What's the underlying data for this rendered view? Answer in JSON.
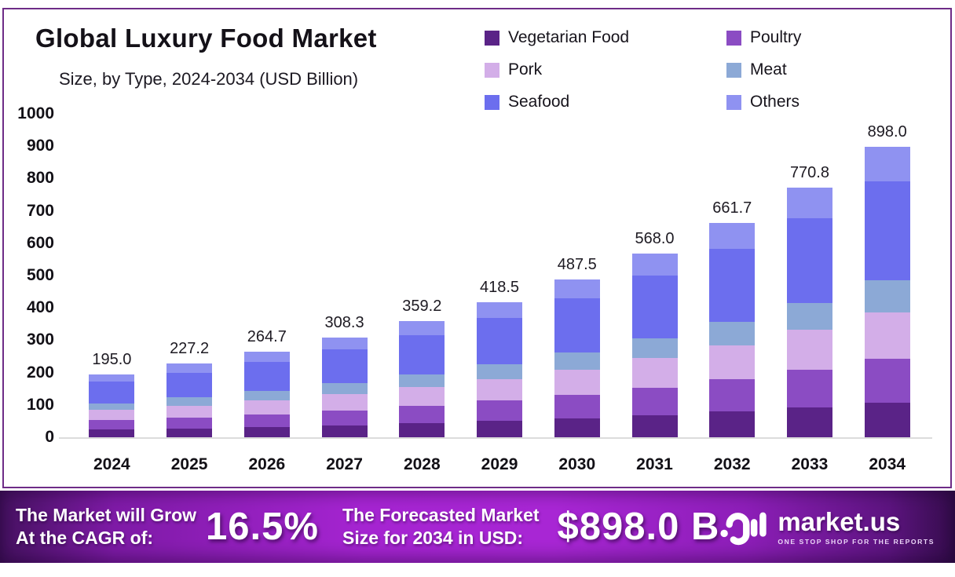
{
  "chart_data": {
    "type": "bar",
    "stacked": true,
    "title": "Global Luxury Food Market",
    "subtitle": "Size, by Type, 2024-2034 (USD Billion)",
    "categories": [
      "2024",
      "2025",
      "2026",
      "2027",
      "2028",
      "2029",
      "2030",
      "2031",
      "2032",
      "2033",
      "2034"
    ],
    "series": [
      {
        "name": "Vegetarian Food",
        "color": "#5a2387",
        "values": [
          23.4,
          27.3,
          31.8,
          37.0,
          43.1,
          50.2,
          58.5,
          68.2,
          79.4,
          92.5,
          107.8
        ]
      },
      {
        "name": "Poultry",
        "color": "#8b4cc3",
        "values": [
          29.3,
          34.1,
          39.7,
          46.2,
          53.9,
          62.8,
          73.1,
          85.2,
          99.3,
          115.6,
          134.7
        ]
      },
      {
        "name": "Pork",
        "color": "#d3aee8",
        "values": [
          31.2,
          36.4,
          42.4,
          49.3,
          57.5,
          67.0,
          78.0,
          90.9,
          105.9,
          123.3,
          143.7
        ]
      },
      {
        "name": "Meat",
        "color": "#8ca9d6",
        "values": [
          21.5,
          25.0,
          29.1,
          33.9,
          39.5,
          46.0,
          53.6,
          62.5,
          72.8,
          84.8,
          98.8
        ]
      },
      {
        "name": "Seafood",
        "color": "#6c6eee",
        "values": [
          66.2,
          77.1,
          89.9,
          104.9,
          122.1,
          142.3,
          165.8,
          193.0,
          224.9,
          262.1,
          305.2
        ]
      },
      {
        "name": "Others",
        "color": "#8f92f1",
        "values": [
          23.4,
          27.3,
          31.8,
          37.0,
          43.1,
          50.2,
          58.5,
          68.2,
          79.4,
          92.5,
          107.8
        ]
      }
    ],
    "totals": [
      195.0,
      227.2,
      264.7,
      308.3,
      359.2,
      418.5,
      487.5,
      568.0,
      661.7,
      770.8,
      898.0
    ],
    "ylim": [
      0,
      1000
    ],
    "y_ticks": [
      0,
      100,
      200,
      300,
      400,
      500,
      600,
      700,
      800,
      900,
      1000
    ],
    "legend_position": "top-right",
    "grid": false
  },
  "banner": {
    "cagr_line1": "The Market will Grow",
    "cagr_line2": "At the CAGR of:",
    "cagr_value": "16.5%",
    "forecast_line1": "The Forecasted Market",
    "forecast_line2": "Size for 2034 in USD:",
    "forecast_value": "$898.0 B",
    "brand_name": "market.us",
    "brand_tagline": "ONE STOP SHOP FOR THE REPORTS"
  },
  "colors": {
    "panel_border": "#6e2c87",
    "banner_left": "#451160",
    "banner_center": "#a524d1",
    "banner_right": "#340c4b",
    "axis_line": "#dcdcdc",
    "text": "#141118"
  }
}
